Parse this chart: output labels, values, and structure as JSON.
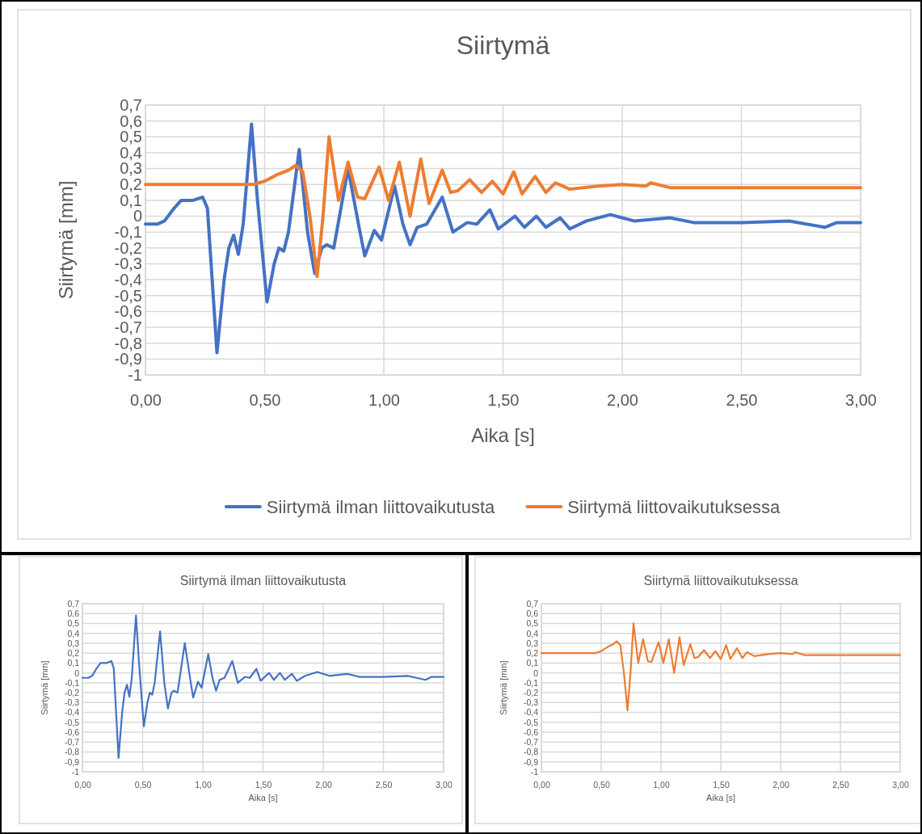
{
  "chart_data": [
    {
      "type": "line",
      "title": "Siirtymä",
      "xlabel": "Aika [s]",
      "ylabel": "Siirtymä [mm]",
      "legend": "bottom",
      "grid": true,
      "line_style": "solid",
      "xlim": [
        0,
        3
      ],
      "xticks": [
        {
          "value": 0,
          "label": "0,00"
        },
        {
          "value": 0.5,
          "label": "0,50"
        },
        {
          "value": 1,
          "label": "1,00"
        },
        {
          "value": 1.5,
          "label": "1,50"
        },
        {
          "value": 2,
          "label": "2,00"
        },
        {
          "value": 2.5,
          "label": "2,50"
        },
        {
          "value": 3,
          "label": "3,00"
        }
      ],
      "ylim": [
        -1,
        0.7
      ],
      "yticks": [
        {
          "value": -1,
          "label": "-1"
        },
        {
          "value": -0.9,
          "label": "-0,9"
        },
        {
          "value": -0.8,
          "label": "-0,8"
        },
        {
          "value": -0.7,
          "label": "-0,7"
        },
        {
          "value": -0.6,
          "label": "-0,6"
        },
        {
          "value": -0.5,
          "label": "-0,5"
        },
        {
          "value": -0.4,
          "label": "-0,4"
        },
        {
          "value": -0.3,
          "label": "-0,3"
        },
        {
          "value": -0.2,
          "label": "-0,2"
        },
        {
          "value": -0.1,
          "label": "-0,1"
        },
        {
          "value": 0,
          "label": "0"
        },
        {
          "value": 0.1,
          "label": "0,1"
        },
        {
          "value": 0.2,
          "label": "0,2"
        },
        {
          "value": 0.3,
          "label": "0,3"
        },
        {
          "value": 0.4,
          "label": "0,4"
        },
        {
          "value": 0.5,
          "label": "0,5"
        },
        {
          "value": 0.6,
          "label": "0,6"
        },
        {
          "value": 0.7,
          "label": "0,7"
        }
      ],
      "series": [
        {
          "name": "Siirtymä ilman liittovaikutusta",
          "color": "#4472c4",
          "x": [
            0,
            0.05,
            0.08,
            0.12,
            0.15,
            0.2,
            0.24,
            0.26,
            0.3,
            0.33,
            0.35,
            0.37,
            0.39,
            0.41,
            0.445,
            0.47,
            0.51,
            0.54,
            0.56,
            0.58,
            0.6,
            0.645,
            0.68,
            0.71,
            0.74,
            0.76,
            0.79,
            0.85,
            0.9,
            0.92,
            0.96,
            0.99,
            1.045,
            1.08,
            1.11,
            1.14,
            1.18,
            1.245,
            1.29,
            1.35,
            1.39,
            1.445,
            1.48,
            1.55,
            1.59,
            1.64,
            1.68,
            1.74,
            1.78,
            1.85,
            1.95,
            2.05,
            2.2,
            2.3,
            2.5,
            2.7,
            2.85,
            2.9,
            3
          ],
          "values": [
            -0.05,
            -0.05,
            -0.03,
            0.05,
            0.1,
            0.1,
            0.12,
            0.05,
            -0.86,
            -0.4,
            -0.2,
            -0.12,
            -0.24,
            -0.05,
            0.58,
            0.1,
            -0.54,
            -0.3,
            -0.2,
            -0.22,
            -0.1,
            0.42,
            -0.1,
            -0.36,
            -0.2,
            -0.18,
            -0.2,
            0.3,
            -0.1,
            -0.25,
            -0.09,
            -0.15,
            0.19,
            -0.05,
            -0.18,
            -0.07,
            -0.05,
            0.12,
            -0.1,
            -0.04,
            -0.05,
            0.04,
            -0.08,
            0,
            -0.07,
            0,
            -0.07,
            -0.01,
            -0.08,
            -0.03,
            0.01,
            -0.03,
            -0.01,
            -0.04,
            -0.04,
            -0.03,
            -0.07,
            -0.04,
            -0.04
          ]
        },
        {
          "name": "Siirtymä liittovaikutuksessa",
          "color": "#ed7d31",
          "x": [
            0,
            0.45,
            0.5,
            0.55,
            0.6,
            0.63,
            0.66,
            0.69,
            0.72,
            0.745,
            0.77,
            0.81,
            0.85,
            0.89,
            0.92,
            0.98,
            1.02,
            1.065,
            1.11,
            1.155,
            1.19,
            1.245,
            1.28,
            1.31,
            1.36,
            1.41,
            1.455,
            1.5,
            1.545,
            1.58,
            1.635,
            1.68,
            1.72,
            1.78,
            1.9,
            2,
            2.1,
            2.12,
            2.2,
            3
          ],
          "values": [
            0.2,
            0.2,
            0.22,
            0.26,
            0.29,
            0.32,
            0.28,
            0,
            -0.38,
            0,
            0.5,
            0.1,
            0.34,
            0.12,
            0.11,
            0.31,
            0.1,
            0.34,
            0,
            0.36,
            0.08,
            0.29,
            0.15,
            0.16,
            0.23,
            0.15,
            0.22,
            0.14,
            0.28,
            0.14,
            0.25,
            0.15,
            0.21,
            0.17,
            0.19,
            0.2,
            0.19,
            0.21,
            0.18,
            0.18
          ]
        }
      ]
    },
    {
      "type": "line",
      "title": "Siirtymä ilman liittovaikutusta",
      "xlabel": "Aika [s]",
      "ylabel": "Siirtymä [mm]",
      "grid": true,
      "line_style": "solid",
      "xlim": [
        0,
        3
      ],
      "xticks": [
        {
          "value": 0,
          "label": "0,00"
        },
        {
          "value": 0.5,
          "label": "0,50"
        },
        {
          "value": 1,
          "label": "1,00"
        },
        {
          "value": 1.5,
          "label": "1,50"
        },
        {
          "value": 2,
          "label": "2,00"
        },
        {
          "value": 2.5,
          "label": "2,50"
        },
        {
          "value": 3,
          "label": "3,00"
        }
      ],
      "ylim": [
        -1,
        0.7
      ],
      "yticks": [
        {
          "value": -1,
          "label": "-1"
        },
        {
          "value": -0.9,
          "label": "-0,9"
        },
        {
          "value": -0.8,
          "label": "-0,8"
        },
        {
          "value": -0.7,
          "label": "-0,7"
        },
        {
          "value": -0.6,
          "label": "-0,6"
        },
        {
          "value": -0.5,
          "label": "-0,5"
        },
        {
          "value": -0.4,
          "label": "-0,4"
        },
        {
          "value": -0.3,
          "label": "-0,3"
        },
        {
          "value": -0.2,
          "label": "-0,2"
        },
        {
          "value": -0.1,
          "label": "-0,1"
        },
        {
          "value": 0,
          "label": "0"
        },
        {
          "value": 0.1,
          "label": "0,1"
        },
        {
          "value": 0.2,
          "label": "0,2"
        },
        {
          "value": 0.3,
          "label": "0,3"
        },
        {
          "value": 0.4,
          "label": "0,4"
        },
        {
          "value": 0.5,
          "label": "0,5"
        },
        {
          "value": 0.6,
          "label": "0,6"
        },
        {
          "value": 0.7,
          "label": "0,7"
        }
      ],
      "series": [
        {
          "color": "#4472c4",
          "x": [
            0,
            0.05,
            0.08,
            0.12,
            0.15,
            0.2,
            0.24,
            0.26,
            0.3,
            0.33,
            0.35,
            0.37,
            0.39,
            0.41,
            0.445,
            0.47,
            0.51,
            0.54,
            0.56,
            0.58,
            0.6,
            0.645,
            0.68,
            0.71,
            0.74,
            0.76,
            0.79,
            0.85,
            0.9,
            0.92,
            0.96,
            0.99,
            1.045,
            1.08,
            1.11,
            1.14,
            1.18,
            1.245,
            1.29,
            1.35,
            1.39,
            1.445,
            1.48,
            1.55,
            1.59,
            1.64,
            1.68,
            1.74,
            1.78,
            1.85,
            1.95,
            2.05,
            2.2,
            2.3,
            2.5,
            2.7,
            2.85,
            2.9,
            3
          ],
          "values": [
            -0.05,
            -0.05,
            -0.03,
            0.05,
            0.1,
            0.1,
            0.12,
            0.05,
            -0.86,
            -0.4,
            -0.2,
            -0.12,
            -0.24,
            -0.05,
            0.58,
            0.1,
            -0.54,
            -0.3,
            -0.2,
            -0.22,
            -0.1,
            0.42,
            -0.1,
            -0.36,
            -0.2,
            -0.18,
            -0.2,
            0.3,
            -0.1,
            -0.25,
            -0.09,
            -0.15,
            0.19,
            -0.05,
            -0.18,
            -0.07,
            -0.05,
            0.12,
            -0.1,
            -0.04,
            -0.05,
            0.04,
            -0.08,
            0,
            -0.07,
            0,
            -0.07,
            -0.01,
            -0.08,
            -0.03,
            0.01,
            -0.03,
            -0.01,
            -0.04,
            -0.04,
            -0.03,
            -0.07,
            -0.04,
            -0.04
          ]
        }
      ]
    },
    {
      "type": "line",
      "title": "Siirtymä liittovaikutuksessa",
      "xlabel": "Aika [s]",
      "ylabel": "Siirtymä [mm]",
      "grid": true,
      "line_style": "solid",
      "xlim": [
        0,
        3
      ],
      "xticks": [
        {
          "value": 0,
          "label": "0,00"
        },
        {
          "value": 0.5,
          "label": "0,50"
        },
        {
          "value": 1,
          "label": "1,00"
        },
        {
          "value": 1.5,
          "label": "1,50"
        },
        {
          "value": 2,
          "label": "2,00"
        },
        {
          "value": 2.5,
          "label": "2,50"
        },
        {
          "value": 3,
          "label": "3,00"
        }
      ],
      "ylim": [
        -1,
        0.7
      ],
      "yticks": [
        {
          "value": -1,
          "label": "-1"
        },
        {
          "value": -0.9,
          "label": "-0,9"
        },
        {
          "value": -0.8,
          "label": "-0,8"
        },
        {
          "value": -0.7,
          "label": "-0,7"
        },
        {
          "value": -0.6,
          "label": "-0,6"
        },
        {
          "value": -0.5,
          "label": "-0,5"
        },
        {
          "value": -0.4,
          "label": "-0,4"
        },
        {
          "value": -0.3,
          "label": "-0,3"
        },
        {
          "value": -0.2,
          "label": "-0,2"
        },
        {
          "value": -0.1,
          "label": "-0,1"
        },
        {
          "value": 0,
          "label": "0"
        },
        {
          "value": 0.1,
          "label": "0,1"
        },
        {
          "value": 0.2,
          "label": "0,2"
        },
        {
          "value": 0.3,
          "label": "0,3"
        },
        {
          "value": 0.4,
          "label": "0,4"
        },
        {
          "value": 0.5,
          "label": "0,5"
        },
        {
          "value": 0.6,
          "label": "0,6"
        },
        {
          "value": 0.7,
          "label": "0,7"
        }
      ],
      "series": [
        {
          "color": "#ed7d31",
          "x": [
            0,
            0.45,
            0.5,
            0.55,
            0.6,
            0.63,
            0.66,
            0.69,
            0.72,
            0.745,
            0.77,
            0.81,
            0.85,
            0.89,
            0.92,
            0.98,
            1.02,
            1.065,
            1.11,
            1.155,
            1.19,
            1.245,
            1.28,
            1.31,
            1.36,
            1.41,
            1.455,
            1.5,
            1.545,
            1.58,
            1.635,
            1.68,
            1.72,
            1.78,
            1.9,
            2,
            2.1,
            2.12,
            2.2,
            3
          ],
          "values": [
            0.2,
            0.2,
            0.22,
            0.26,
            0.29,
            0.32,
            0.28,
            0,
            -0.38,
            0,
            0.5,
            0.1,
            0.34,
            0.12,
            0.11,
            0.31,
            0.1,
            0.34,
            0,
            0.36,
            0.08,
            0.29,
            0.15,
            0.16,
            0.23,
            0.15,
            0.22,
            0.14,
            0.28,
            0.14,
            0.25,
            0.15,
            0.21,
            0.17,
            0.19,
            0.2,
            0.19,
            0.21,
            0.18,
            0.18
          ]
        }
      ]
    }
  ]
}
